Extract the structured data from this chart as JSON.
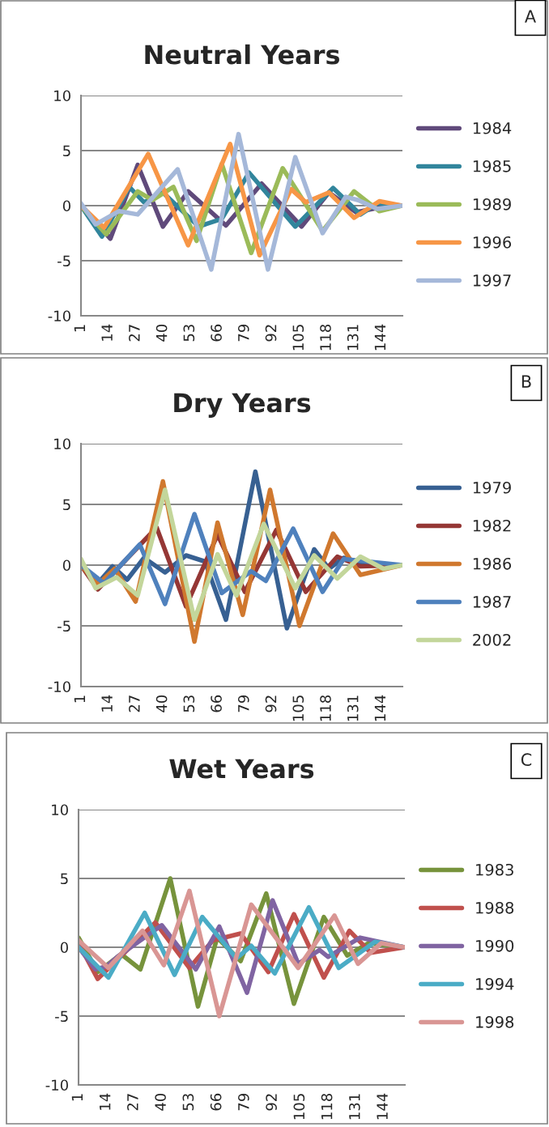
{
  "chart_data": [
    {
      "type": "line",
      "title": "Neutral Years",
      "annotations": [
        "A"
      ],
      "xlim": [
        1,
        154
      ],
      "xticks": [
        1,
        14,
        27,
        40,
        53,
        66,
        79,
        92,
        105,
        118,
        131,
        144
      ],
      "ylim": [
        -10,
        10
      ],
      "yticks": [
        -10,
        -5,
        0,
        5,
        10
      ],
      "grid": "y",
      "legend": "right",
      "marker": "none",
      "line_style": "solid",
      "series": [
        {
          "name": "1984",
          "color": "#604a7b",
          "x": [
            1,
            15,
            28,
            40,
            52,
            70,
            87,
            106,
            119,
            132,
            142,
            154
          ],
          "values": [
            0,
            -3.0,
            3.7,
            -1.9,
            1.3,
            -1.8,
            2.0,
            -1.9,
            1.2,
            -0.6,
            -0.2,
            0
          ]
        },
        {
          "name": "1985",
          "color": "#31859c",
          "x": [
            1,
            11,
            24,
            31,
            40,
            57,
            68,
            81,
            103,
            121,
            134,
            142,
            154
          ],
          "values": [
            0,
            -2.8,
            1.7,
            0.3,
            1.2,
            -1.9,
            -1.2,
            3.0,
            -1.9,
            1.6,
            -0.8,
            0.2,
            0
          ]
        },
        {
          "name": "1989",
          "color": "#9bbb59",
          "x": [
            1,
            13,
            28,
            35,
            45,
            56,
            68,
            82,
            97,
            116,
            131,
            143,
            154
          ],
          "values": [
            0,
            -2.6,
            1.3,
            0.5,
            1.7,
            -3.2,
            3.8,
            -4.3,
            3.4,
            -2.3,
            1.3,
            -0.5,
            0
          ]
        },
        {
          "name": "1996",
          "color": "#f79646",
          "x": [
            1,
            12,
            33,
            52,
            72,
            86,
            101,
            108,
            119,
            131,
            143,
            154
          ],
          "values": [
            0,
            -2.0,
            4.7,
            -3.6,
            5.6,
            -4.5,
            1.5,
            0.3,
            1.2,
            -1.1,
            0.4,
            0
          ]
        },
        {
          "name": "1997",
          "color": "#a5b8d9",
          "x": [
            1,
            8,
            19,
            28,
            47,
            63,
            76,
            90,
            103,
            116,
            127,
            133,
            142,
            154
          ],
          "values": [
            0.2,
            -1.7,
            -0.5,
            -0.8,
            3.3,
            -5.8,
            6.5,
            -5.8,
            4.4,
            -2.5,
            0.8,
            0.5,
            -0.3,
            0
          ]
        }
      ]
    },
    {
      "type": "line",
      "title": "Dry Years",
      "annotations": [
        "B"
      ],
      "xlim": [
        1,
        154
      ],
      "xticks": [
        1,
        14,
        27,
        40,
        53,
        66,
        79,
        92,
        105,
        118,
        131,
        144
      ],
      "ylim": [
        -10,
        10
      ],
      "yticks": [
        -10,
        -5,
        0,
        5,
        10
      ],
      "grid": "y",
      "legend": "right",
      "marker": "none",
      "line_style": "solid",
      "series": [
        {
          "name": "1979",
          "color": "#376092",
          "x": [
            1,
            9,
            16,
            23,
            31,
            41,
            51,
            60,
            70,
            84,
            99,
            112,
            119,
            126,
            136,
            154
          ],
          "values": [
            0,
            -1.5,
            -0.1,
            -1.2,
            0.6,
            -0.6,
            0.8,
            0.3,
            -4.5,
            7.7,
            -5.2,
            1.3,
            -0.3,
            0.6,
            0.1,
            0
          ]
        },
        {
          "name": "1982",
          "color": "#953735",
          "x": [
            1,
            9,
            37,
            51,
            66,
            79,
            94,
            108,
            123,
            134,
            154
          ],
          "values": [
            0,
            -2.0,
            3.1,
            -3.4,
            2.5,
            -2.2,
            2.9,
            -2.2,
            0.7,
            -0.1,
            0
          ]
        },
        {
          "name": "1986",
          "color": "#d0782e",
          "x": [
            1,
            9,
            17,
            27,
            40,
            55,
            66,
            78,
            91,
            105,
            121,
            134,
            154
          ],
          "values": [
            0,
            -1.6,
            -0.3,
            -3.0,
            6.9,
            -6.3,
            3.5,
            -4.1,
            6.2,
            -5.0,
            2.6,
            -0.8,
            0
          ]
        },
        {
          "name": "1987",
          "color": "#4f81bd",
          "x": [
            1,
            12,
            29,
            41,
            55,
            68,
            82,
            89,
            102,
            116,
            126,
            154
          ],
          "values": [
            0,
            -1.5,
            1.7,
            -3.2,
            4.2,
            -2.3,
            -0.5,
            -1.3,
            3.0,
            -2.2,
            0.5,
            0
          ]
        },
        {
          "name": "2002",
          "color": "#c3d69b",
          "x": [
            1,
            8,
            18,
            28,
            41,
            55,
            66,
            75,
            88,
            103,
            112,
            123,
            134,
            145,
            154
          ],
          "values": [
            0.5,
            -1.9,
            -1.0,
            -2.5,
            6.2,
            -4.5,
            0.9,
            -2.5,
            3.4,
            -1.9,
            0.8,
            -1.1,
            0.7,
            -0.3,
            0
          ]
        }
      ]
    },
    {
      "type": "line",
      "title": "Wet Years",
      "annotations": [
        "C"
      ],
      "xlim": [
        1,
        154
      ],
      "xticks": [
        1,
        14,
        27,
        40,
        53,
        66,
        79,
        92,
        105,
        118,
        131,
        144
      ],
      "ylim": [
        -10,
        10
      ],
      "yticks": [
        -10,
        -5,
        0,
        5,
        10
      ],
      "grid": "y",
      "legend": "right",
      "marker": "none",
      "line_style": "solid",
      "series": [
        {
          "name": "1983",
          "color": "#77933c",
          "x": [
            1,
            10,
            21,
            30,
            44,
            57,
            66,
            77,
            89,
            102,
            116,
            127,
            137,
            154
          ],
          "values": [
            0.7,
            -1.8,
            -0.5,
            -1.6,
            5.0,
            -4.3,
            0.7,
            -1.0,
            3.9,
            -4.1,
            2.2,
            -0.6,
            0.3,
            0
          ]
        },
        {
          "name": "1988",
          "color": "#c0504d",
          "x": [
            1,
            10,
            37,
            53,
            64,
            77,
            90,
            102,
            116,
            128,
            138,
            154
          ],
          "values": [
            0.3,
            -2.3,
            1.8,
            -1.5,
            0.5,
            1.0,
            -1.8,
            2.4,
            -2.2,
            1.2,
            -0.4,
            0
          ]
        },
        {
          "name": "1990",
          "color": "#8064a2",
          "x": [
            1,
            9,
            14,
            20,
            40,
            56,
            67,
            80,
            92,
            104,
            114,
            118,
            133,
            154
          ],
          "values": [
            0,
            -1.6,
            -1.4,
            -0.6,
            1.6,
            -1.6,
            1.5,
            -3.3,
            3.4,
            -1.2,
            -0.2,
            -0.7,
            0.7,
            0
          ]
        },
        {
          "name": "1994",
          "color": "#4bacc6",
          "x": [
            1,
            15,
            32,
            46,
            59,
            75,
            82,
            93,
            109,
            123,
            140,
            154
          ],
          "values": [
            0,
            -2.2,
            2.5,
            -2.0,
            2.2,
            -0.8,
            0.1,
            -1.9,
            2.9,
            -1.5,
            0.4,
            0
          ]
        },
        {
          "name": "1998",
          "color": "#d99694",
          "x": [
            1,
            15,
            31,
            41,
            53,
            67,
            82,
            104,
            121,
            132,
            143,
            154
          ],
          "values": [
            0.5,
            -1.5,
            1.2,
            -1.3,
            4.1,
            -5.0,
            3.1,
            -1.5,
            2.3,
            -1.2,
            0.3,
            0
          ]
        }
      ]
    }
  ]
}
